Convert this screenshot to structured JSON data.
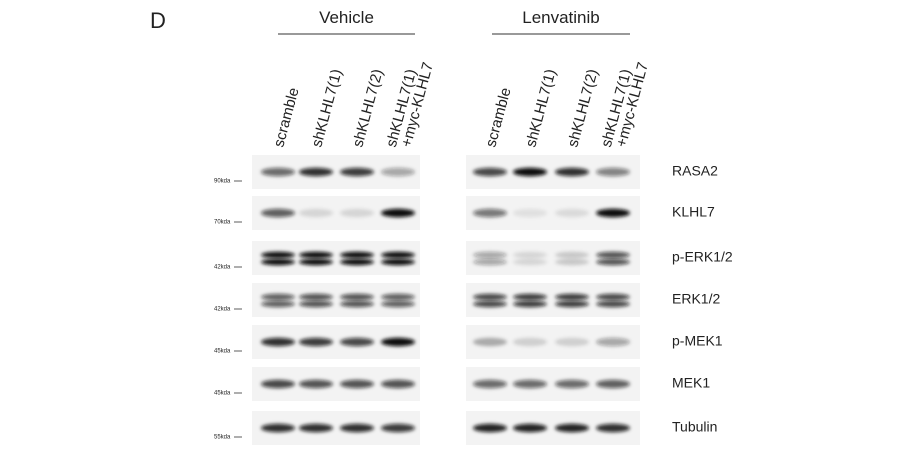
{
  "panel_label": "D",
  "groups": [
    {
      "label": "Vehicle",
      "lanes": [
        [
          "scramble"
        ],
        [
          "shKLHL7(1)"
        ],
        [
          "shKLHL7(2)"
        ],
        [
          "shKLHL7(1)",
          "+myc-KLHL7"
        ]
      ]
    },
    {
      "label": "Lenvatinib",
      "lanes": [
        [
          "scramble"
        ],
        [
          "shKLHL7(1)"
        ],
        [
          "shKLHL7(2)"
        ],
        [
          "shKLHL7(1)",
          "+myc-KLHL7"
        ]
      ]
    }
  ],
  "rows": [
    {
      "marker": "90kda",
      "protein": "RASA2"
    },
    {
      "marker": "70kda",
      "protein": "KLHL7"
    },
    {
      "marker": "42kda",
      "protein": "p-ERK1/2"
    },
    {
      "marker": "42kda",
      "protein": "ERK1/2"
    },
    {
      "marker": "45kda",
      "protein": "p-MEK1"
    },
    {
      "marker": "45kda",
      "protein": "MEK1"
    },
    {
      "marker": "55kda",
      "protein": "Tubulin"
    }
  ]
}
